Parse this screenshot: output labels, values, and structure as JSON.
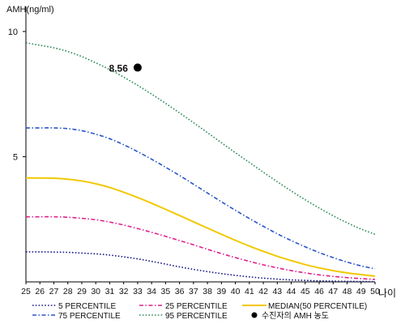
{
  "chart_data": {
    "type": "line",
    "title": "",
    "ylabel": "AMH(ng/ml)",
    "xlabel": "나이",
    "x": [
      25,
      26,
      27,
      28,
      29,
      30,
      31,
      32,
      33,
      34,
      35,
      36,
      37,
      38,
      39,
      40,
      41,
      42,
      43,
      44,
      45,
      46,
      47,
      48,
      49,
      50
    ],
    "x_tick_labels": [
      "25",
      "26",
      "27",
      "28",
      "29",
      "30",
      "31",
      "32",
      "33",
      "34",
      "35",
      "36",
      "37",
      "38",
      "39",
      "40",
      "41",
      "42",
      "43",
      "44",
      "45",
      "46",
      "47",
      "48",
      "49",
      "50"
    ],
    "xlim": [
      25,
      50
    ],
    "ylim": [
      0,
      11
    ],
    "y_ticks": [
      5,
      10
    ],
    "y_tick_labels": [
      "5",
      "10"
    ],
    "grid": false,
    "legend_position": "bottom",
    "series": [
      {
        "name": "5 PERCENTILE",
        "color": "#1a1a8c",
        "dash": "dotted",
        "values": [
          1.2,
          1.2,
          1.19,
          1.18,
          1.15,
          1.12,
          1.07,
          1.0,
          0.92,
          0.82,
          0.71,
          0.6,
          0.5,
          0.41,
          0.33,
          0.26,
          0.2,
          0.15,
          0.11,
          0.08,
          0.06,
          0.04,
          0.03,
          0.02,
          0.015,
          0.01
        ]
      },
      {
        "name": "25 PERCENTILE",
        "color": "#e0208c",
        "dash": "dashdot",
        "values": [
          2.6,
          2.6,
          2.6,
          2.58,
          2.54,
          2.48,
          2.39,
          2.27,
          2.13,
          1.98,
          1.82,
          1.65,
          1.48,
          1.3,
          1.13,
          0.97,
          0.82,
          0.68,
          0.56,
          0.45,
          0.36,
          0.28,
          0.22,
          0.17,
          0.13,
          0.1
        ]
      },
      {
        "name": "MEDIAN(50 PERCENTILE)",
        "color": "#f2c800",
        "dash": "solid",
        "values": [
          4.15,
          4.15,
          4.14,
          4.1,
          4.03,
          3.92,
          3.77,
          3.58,
          3.37,
          3.14,
          2.9,
          2.65,
          2.4,
          2.15,
          1.9,
          1.66,
          1.43,
          1.22,
          1.02,
          0.85,
          0.69,
          0.56,
          0.45,
          0.36,
          0.29,
          0.23
        ]
      },
      {
        "name": "75 PERCENTILE",
        "color": "#2a55c8",
        "dash": "dashdot",
        "values": [
          6.15,
          6.15,
          6.15,
          6.12,
          6.04,
          5.9,
          5.72,
          5.48,
          5.2,
          4.9,
          4.58,
          4.25,
          3.9,
          3.55,
          3.2,
          2.86,
          2.53,
          2.22,
          1.92,
          1.65,
          1.4,
          1.17,
          0.97,
          0.79,
          0.64,
          0.52
        ]
      },
      {
        "name": "95 PERCENTILE",
        "color": "#2e8b57",
        "dash": "dotted",
        "values": [
          9.55,
          9.45,
          9.35,
          9.2,
          9.0,
          8.75,
          8.48,
          8.18,
          7.85,
          7.5,
          7.13,
          6.75,
          6.36,
          5.96,
          5.56,
          5.16,
          4.77,
          4.38,
          4.0,
          3.63,
          3.28,
          2.95,
          2.64,
          2.36,
          2.11,
          1.9
        ]
      }
    ],
    "points": [
      {
        "name": "수진자의 AMH 농도",
        "x": 33,
        "y": 8.56,
        "label": "8.56",
        "color": "#000000"
      }
    ]
  }
}
